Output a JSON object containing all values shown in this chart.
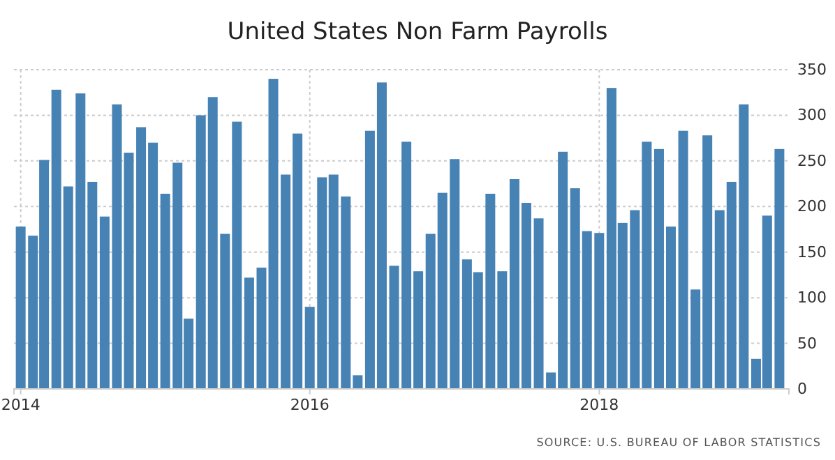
{
  "chart_data": {
    "type": "bar",
    "title": "United States Non Farm Payrolls",
    "x": [
      "2014-01",
      "2014-02",
      "2014-03",
      "2014-04",
      "2014-05",
      "2014-06",
      "2014-07",
      "2014-08",
      "2014-09",
      "2014-10",
      "2014-11",
      "2014-12",
      "2015-01",
      "2015-02",
      "2015-03",
      "2015-04",
      "2015-05",
      "2015-06",
      "2015-07",
      "2015-08",
      "2015-09",
      "2015-10",
      "2015-11",
      "2015-12",
      "2016-01",
      "2016-02",
      "2016-03",
      "2016-04",
      "2016-05",
      "2016-06",
      "2016-07",
      "2016-08",
      "2016-09",
      "2016-10",
      "2016-11",
      "2016-12",
      "2017-01",
      "2017-02",
      "2017-03",
      "2017-04",
      "2017-05",
      "2017-06",
      "2017-07",
      "2017-08",
      "2017-09",
      "2017-10",
      "2017-11",
      "2017-12",
      "2018-01",
      "2018-02",
      "2018-03",
      "2018-04",
      "2018-05",
      "2018-06",
      "2018-07",
      "2018-08",
      "2018-09",
      "2018-10",
      "2018-11",
      "2018-12",
      "2019-01",
      "2019-02",
      "2019-03",
      "2019-04"
    ],
    "values": [
      178,
      168,
      251,
      328,
      222,
      324,
      227,
      189,
      312,
      259,
      287,
      270,
      214,
      248,
      77,
      300,
      320,
      170,
      293,
      122,
      133,
      340,
      235,
      280,
      90,
      232,
      235,
      211,
      15,
      283,
      336,
      135,
      271,
      129,
      170,
      215,
      252,
      142,
      128,
      214,
      129,
      230,
      204,
      187,
      18,
      260,
      220,
      173,
      171,
      330,
      182,
      196,
      271,
      263,
      178,
      283,
      109,
      278,
      196,
      227,
      312,
      33,
      190,
      263
    ],
    "color": "#4682b4",
    "xlim": [
      "2013-12-15",
      "2019-04-25"
    ],
    "xticks": [
      {
        "value": "2014-01",
        "label": "2014"
      },
      {
        "value": "2016-01",
        "label": "2016"
      },
      {
        "value": "2018-01",
        "label": "2018"
      }
    ],
    "ylim": [
      0,
      350
    ],
    "yticks": [
      0,
      50,
      100,
      150,
      200,
      250,
      300,
      350
    ],
    "grid": true,
    "annotations": [
      "SOURCE: U.S. BUREAU OF LABOR STATISTICS"
    ]
  }
}
